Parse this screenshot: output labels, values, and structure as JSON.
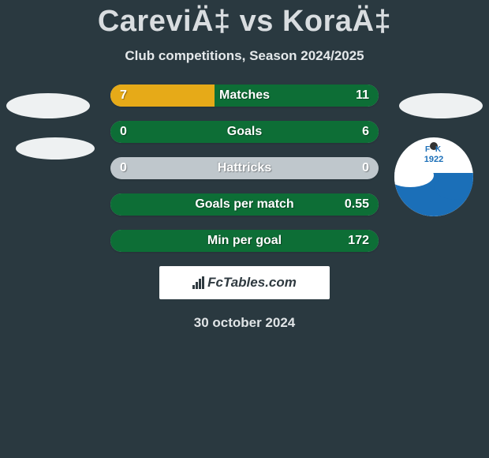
{
  "title": "CareviÄ‡ vs KoraÄ‡",
  "subtitle": "Club competitions, Season 2024/2025",
  "date": "30 october 2024",
  "fctables_label": "FcTables.com",
  "colors": {
    "background": "#2a3940",
    "bar_base": "#bfc7cc",
    "left_fill": "#e6aa18",
    "right_fill": "#0d6e36",
    "text_light": "#e5e9eb",
    "white": "#ffffff",
    "crest_blue": "#1b6fb8"
  },
  "crest": {
    "letters": "F  K",
    "year": "1922"
  },
  "bars": [
    {
      "label": "Matches",
      "left_val": "7",
      "right_val": "11",
      "left_pct": 38.9,
      "right_pct": 61.1,
      "left_color": "#e6aa18",
      "right_color": "#0d6e36",
      "show_left": true,
      "show_right": true
    },
    {
      "label": "Goals",
      "left_val": "0",
      "right_val": "6",
      "left_pct": 0,
      "right_pct": 100,
      "left_color": "#e6aa18",
      "right_color": "#0d6e36",
      "show_left": false,
      "show_right": true
    },
    {
      "label": "Hattricks",
      "left_val": "0",
      "right_val": "0",
      "left_pct": 0,
      "right_pct": 0,
      "left_color": "#e6aa18",
      "right_color": "#0d6e36",
      "show_left": false,
      "show_right": false
    },
    {
      "label": "Goals per match",
      "left_val": "",
      "right_val": "0.55",
      "left_pct": 0,
      "right_pct": 100,
      "left_color": "#e6aa18",
      "right_color": "#0d6e36",
      "show_left": false,
      "show_right": true
    },
    {
      "label": "Min per goal",
      "left_val": "",
      "right_val": "172",
      "left_pct": 0,
      "right_pct": 100,
      "left_color": "#e6aa18",
      "right_color": "#0d6e36",
      "show_left": false,
      "show_right": true
    }
  ]
}
